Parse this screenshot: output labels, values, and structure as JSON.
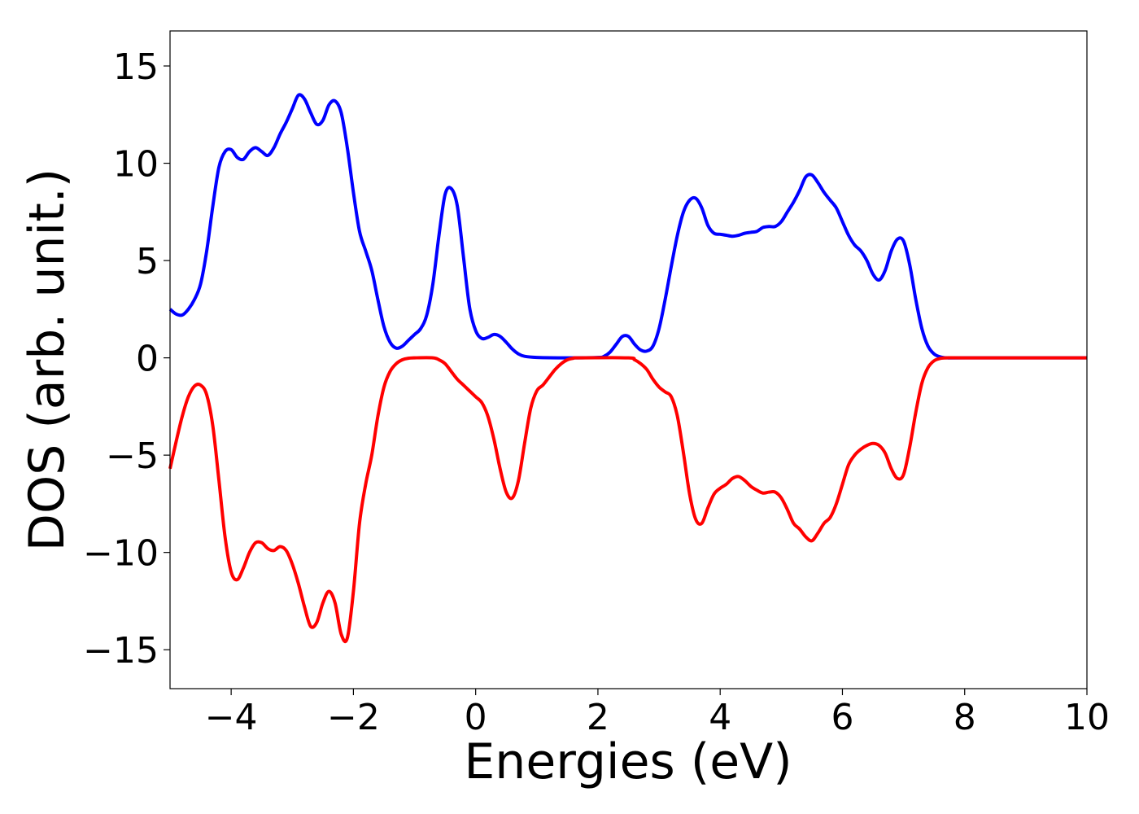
{
  "chart_data": {
    "type": "line",
    "title": "",
    "xlabel": "Energies (eV)",
    "ylabel": "DOS (arb. unit.)",
    "xlim": [
      -5,
      10
    ],
    "ylim": [
      -17,
      16.8
    ],
    "xticks": [
      -4,
      -2,
      0,
      2,
      4,
      6,
      8,
      10
    ],
    "xtick_labels": [
      "−4",
      "−2",
      "0",
      "2",
      "4",
      "6",
      "8",
      "10"
    ],
    "yticks": [
      15,
      10,
      5,
      0,
      -5,
      -10,
      -15
    ],
    "ytick_labels": [
      "15",
      "10",
      "5",
      "0",
      "−5",
      "−10",
      "−15"
    ],
    "grid": false,
    "series": [
      {
        "color": "#0000ff",
        "points": [
          [
            -5.0,
            2.5
          ],
          [
            -4.9,
            2.25
          ],
          [
            -4.8,
            2.2
          ],
          [
            -4.7,
            2.5
          ],
          [
            -4.6,
            3.0
          ],
          [
            -4.5,
            3.8
          ],
          [
            -4.4,
            5.5
          ],
          [
            -4.3,
            7.8
          ],
          [
            -4.2,
            9.8
          ],
          [
            -4.1,
            10.6
          ],
          [
            -4.0,
            10.7
          ],
          [
            -3.9,
            10.3
          ],
          [
            -3.8,
            10.2
          ],
          [
            -3.7,
            10.6
          ],
          [
            -3.6,
            10.8
          ],
          [
            -3.5,
            10.6
          ],
          [
            -3.4,
            10.4
          ],
          [
            -3.3,
            10.8
          ],
          [
            -3.2,
            11.5
          ],
          [
            -3.1,
            12.1
          ],
          [
            -3.0,
            12.8
          ],
          [
            -2.9,
            13.5
          ],
          [
            -2.8,
            13.3
          ],
          [
            -2.7,
            12.6
          ],
          [
            -2.6,
            12.0
          ],
          [
            -2.5,
            12.2
          ],
          [
            -2.4,
            13.0
          ],
          [
            -2.3,
            13.2
          ],
          [
            -2.2,
            12.6
          ],
          [
            -2.1,
            10.8
          ],
          [
            -2.0,
            8.5
          ],
          [
            -1.9,
            6.5
          ],
          [
            -1.8,
            5.5
          ],
          [
            -1.7,
            4.5
          ],
          [
            -1.6,
            3.0
          ],
          [
            -1.5,
            1.6
          ],
          [
            -1.4,
            0.8
          ],
          [
            -1.3,
            0.5
          ],
          [
            -1.2,
            0.6
          ],
          [
            -1.1,
            0.9
          ],
          [
            -1.0,
            1.2
          ],
          [
            -0.9,
            1.5
          ],
          [
            -0.8,
            2.2
          ],
          [
            -0.7,
            3.8
          ],
          [
            -0.6,
            6.3
          ],
          [
            -0.5,
            8.4
          ],
          [
            -0.4,
            8.7
          ],
          [
            -0.3,
            7.8
          ],
          [
            -0.2,
            5.2
          ],
          [
            -0.1,
            2.6
          ],
          [
            0.0,
            1.4
          ],
          [
            0.1,
            1.0
          ],
          [
            0.2,
            1.05
          ],
          [
            0.3,
            1.2
          ],
          [
            0.4,
            1.1
          ],
          [
            0.5,
            0.8
          ],
          [
            0.6,
            0.45
          ],
          [
            0.7,
            0.2
          ],
          [
            0.8,
            0.08
          ],
          [
            1.0,
            0.02
          ],
          [
            1.5,
            0.0
          ],
          [
            2.0,
            0.02
          ],
          [
            2.1,
            0.08
          ],
          [
            2.2,
            0.3
          ],
          [
            2.3,
            0.7
          ],
          [
            2.4,
            1.1
          ],
          [
            2.5,
            1.1
          ],
          [
            2.6,
            0.7
          ],
          [
            2.7,
            0.4
          ],
          [
            2.8,
            0.35
          ],
          [
            2.9,
            0.6
          ],
          [
            3.0,
            1.5
          ],
          [
            3.1,
            3.0
          ],
          [
            3.2,
            4.7
          ],
          [
            3.3,
            6.3
          ],
          [
            3.4,
            7.5
          ],
          [
            3.5,
            8.1
          ],
          [
            3.6,
            8.2
          ],
          [
            3.7,
            7.7
          ],
          [
            3.8,
            6.8
          ],
          [
            3.9,
            6.4
          ],
          [
            4.0,
            6.35
          ],
          [
            4.1,
            6.3
          ],
          [
            4.2,
            6.25
          ],
          [
            4.3,
            6.3
          ],
          [
            4.4,
            6.4
          ],
          [
            4.5,
            6.45
          ],
          [
            4.6,
            6.5
          ],
          [
            4.7,
            6.7
          ],
          [
            4.8,
            6.75
          ],
          [
            4.9,
            6.75
          ],
          [
            5.0,
            7.0
          ],
          [
            5.1,
            7.5
          ],
          [
            5.2,
            8.0
          ],
          [
            5.3,
            8.6
          ],
          [
            5.4,
            9.3
          ],
          [
            5.5,
            9.4
          ],
          [
            5.6,
            9.0
          ],
          [
            5.7,
            8.5
          ],
          [
            5.8,
            8.1
          ],
          [
            5.9,
            7.7
          ],
          [
            6.0,
            7.0
          ],
          [
            6.1,
            6.3
          ],
          [
            6.2,
            5.8
          ],
          [
            6.3,
            5.5
          ],
          [
            6.4,
            5.0
          ],
          [
            6.5,
            4.3
          ],
          [
            6.6,
            4.0
          ],
          [
            6.7,
            4.5
          ],
          [
            6.8,
            5.5
          ],
          [
            6.9,
            6.1
          ],
          [
            7.0,
            6.0
          ],
          [
            7.1,
            4.8
          ],
          [
            7.2,
            3.0
          ],
          [
            7.3,
            1.5
          ],
          [
            7.4,
            0.6
          ],
          [
            7.5,
            0.2
          ],
          [
            7.6,
            0.05
          ],
          [
            7.7,
            0.0
          ],
          [
            8.0,
            0.0
          ],
          [
            10.0,
            0.0
          ]
        ]
      },
      {
        "color": "#ff0000",
        "points": [
          [
            -5.0,
            -5.7
          ],
          [
            -4.9,
            -4.3
          ],
          [
            -4.8,
            -3.0
          ],
          [
            -4.7,
            -2.0
          ],
          [
            -4.6,
            -1.45
          ],
          [
            -4.5,
            -1.4
          ],
          [
            -4.4,
            -1.9
          ],
          [
            -4.3,
            -3.5
          ],
          [
            -4.2,
            -6.3
          ],
          [
            -4.1,
            -9.2
          ],
          [
            -4.0,
            -11.0
          ],
          [
            -3.9,
            -11.4
          ],
          [
            -3.8,
            -10.8
          ],
          [
            -3.7,
            -10.0
          ],
          [
            -3.6,
            -9.5
          ],
          [
            -3.5,
            -9.5
          ],
          [
            -3.4,
            -9.8
          ],
          [
            -3.3,
            -9.9
          ],
          [
            -3.2,
            -9.7
          ],
          [
            -3.1,
            -9.9
          ],
          [
            -3.0,
            -10.6
          ],
          [
            -2.9,
            -11.6
          ],
          [
            -2.8,
            -12.8
          ],
          [
            -2.7,
            -13.8
          ],
          [
            -2.6,
            -13.6
          ],
          [
            -2.5,
            -12.6
          ],
          [
            -2.4,
            -12.0
          ],
          [
            -2.3,
            -12.6
          ],
          [
            -2.2,
            -14.2
          ],
          [
            -2.1,
            -14.4
          ],
          [
            -2.0,
            -12.0
          ],
          [
            -1.9,
            -8.5
          ],
          [
            -1.8,
            -6.5
          ],
          [
            -1.7,
            -5.0
          ],
          [
            -1.6,
            -3.0
          ],
          [
            -1.5,
            -1.5
          ],
          [
            -1.4,
            -0.7
          ],
          [
            -1.3,
            -0.3
          ],
          [
            -1.2,
            -0.1
          ],
          [
            -1.1,
            -0.02
          ],
          [
            -1.0,
            0.0
          ],
          [
            -0.7,
            0.0
          ],
          [
            -0.6,
            -0.1
          ],
          [
            -0.5,
            -0.3
          ],
          [
            -0.4,
            -0.7
          ],
          [
            -0.3,
            -1.1
          ],
          [
            -0.2,
            -1.4
          ],
          [
            -0.1,
            -1.7
          ],
          [
            0.0,
            -2.0
          ],
          [
            0.1,
            -2.3
          ],
          [
            0.2,
            -3.0
          ],
          [
            0.3,
            -4.2
          ],
          [
            0.4,
            -5.7
          ],
          [
            0.5,
            -6.9
          ],
          [
            0.6,
            -7.2
          ],
          [
            0.7,
            -6.3
          ],
          [
            0.8,
            -4.4
          ],
          [
            0.9,
            -2.6
          ],
          [
            1.0,
            -1.7
          ],
          [
            1.1,
            -1.4
          ],
          [
            1.2,
            -1.0
          ],
          [
            1.3,
            -0.6
          ],
          [
            1.4,
            -0.3
          ],
          [
            1.5,
            -0.1
          ],
          [
            1.6,
            -0.02
          ],
          [
            1.7,
            0.0
          ],
          [
            2.5,
            0.0
          ],
          [
            2.6,
            -0.1
          ],
          [
            2.7,
            -0.3
          ],
          [
            2.8,
            -0.6
          ],
          [
            2.9,
            -1.1
          ],
          [
            3.0,
            -1.5
          ],
          [
            3.1,
            -1.75
          ],
          [
            3.2,
            -2.0
          ],
          [
            3.3,
            -3.0
          ],
          [
            3.4,
            -4.9
          ],
          [
            3.5,
            -7.0
          ],
          [
            3.6,
            -8.3
          ],
          [
            3.7,
            -8.5
          ],
          [
            3.8,
            -7.7
          ],
          [
            3.9,
            -7.0
          ],
          [
            4.0,
            -6.7
          ],
          [
            4.1,
            -6.5
          ],
          [
            4.2,
            -6.2
          ],
          [
            4.3,
            -6.1
          ],
          [
            4.4,
            -6.3
          ],
          [
            4.5,
            -6.6
          ],
          [
            4.6,
            -6.8
          ],
          [
            4.7,
            -6.95
          ],
          [
            4.8,
            -6.9
          ],
          [
            4.9,
            -6.9
          ],
          [
            5.0,
            -7.2
          ],
          [
            5.1,
            -7.8
          ],
          [
            5.2,
            -8.5
          ],
          [
            5.3,
            -8.8
          ],
          [
            5.4,
            -9.2
          ],
          [
            5.5,
            -9.4
          ],
          [
            5.6,
            -9.0
          ],
          [
            5.7,
            -8.5
          ],
          [
            5.8,
            -8.2
          ],
          [
            5.9,
            -7.5
          ],
          [
            6.0,
            -6.5
          ],
          [
            6.1,
            -5.5
          ],
          [
            6.2,
            -5.0
          ],
          [
            6.3,
            -4.7
          ],
          [
            6.4,
            -4.5
          ],
          [
            6.5,
            -4.4
          ],
          [
            6.6,
            -4.5
          ],
          [
            6.7,
            -4.9
          ],
          [
            6.8,
            -5.7
          ],
          [
            6.9,
            -6.2
          ],
          [
            7.0,
            -6.0
          ],
          [
            7.1,
            -4.6
          ],
          [
            7.2,
            -2.8
          ],
          [
            7.3,
            -1.3
          ],
          [
            7.4,
            -0.5
          ],
          [
            7.5,
            -0.15
          ],
          [
            7.6,
            -0.03
          ],
          [
            7.7,
            0.0
          ],
          [
            8.0,
            0.0
          ],
          [
            10.0,
            0.0
          ]
        ]
      }
    ]
  }
}
